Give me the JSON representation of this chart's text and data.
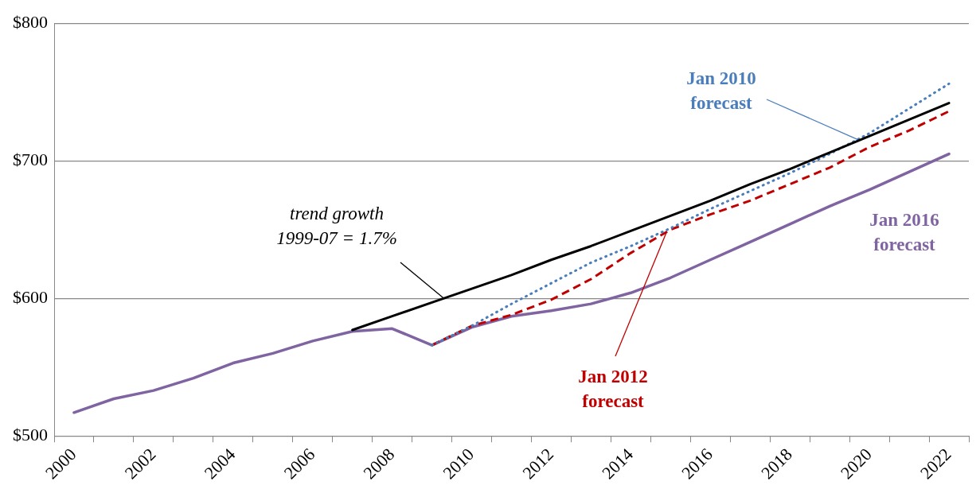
{
  "chart_data": {
    "type": "line",
    "categories": [
      "2000",
      null,
      "2002",
      null,
      "2004",
      null,
      "2006",
      null,
      "2008",
      null,
      "2010",
      null,
      "2012",
      null,
      "2014",
      null,
      "2016",
      null,
      "2018",
      null,
      "2020",
      null,
      "2022"
    ],
    "ylim": [
      500,
      800
    ],
    "yticks": [
      {
        "value": 500,
        "label": "$500"
      },
      {
        "value": 600,
        "label": "$600"
      },
      {
        "value": 700,
        "label": "$700"
      },
      {
        "value": 800,
        "label": "$800"
      }
    ],
    "grid": "y",
    "legend": false,
    "marker": "none",
    "series": [
      {
        "name": "trend growth 1999-07 = 1.7%",
        "color": "#000000",
        "line_style": "solid",
        "values": [
          null,
          null,
          null,
          null,
          null,
          null,
          null,
          577,
          587,
          597,
          607,
          617,
          628,
          638,
          649,
          660,
          671,
          683,
          694,
          706,
          718,
          730,
          742
        ]
      },
      {
        "name": "Jan 2010 forecast",
        "color": "#4a7ebb",
        "line_style": "dotted",
        "values": [
          null,
          null,
          null,
          null,
          null,
          null,
          null,
          null,
          null,
          566,
          580,
          596,
          611,
          626,
          638,
          651,
          665,
          678,
          691,
          705,
          720,
          738,
          756
        ]
      },
      {
        "name": "Jan 2012 forecast",
        "color": "#c00000",
        "line_style": "dashed",
        "values": [
          null,
          null,
          null,
          null,
          null,
          null,
          null,
          null,
          null,
          566,
          580,
          588,
          599,
          614,
          633,
          650,
          661,
          671,
          683,
          695,
          710,
          722,
          736
        ]
      },
      {
        "name": "Jan 2016 forecast",
        "color": "#8064a2",
        "line_style": "solid",
        "values": [
          517,
          527,
          533,
          542,
          553,
          560,
          569,
          576,
          578,
          566,
          579,
          587,
          591,
          596,
          604,
          615,
          628,
          641,
          654,
          667,
          679,
          692,
          705
        ]
      }
    ]
  }
}
